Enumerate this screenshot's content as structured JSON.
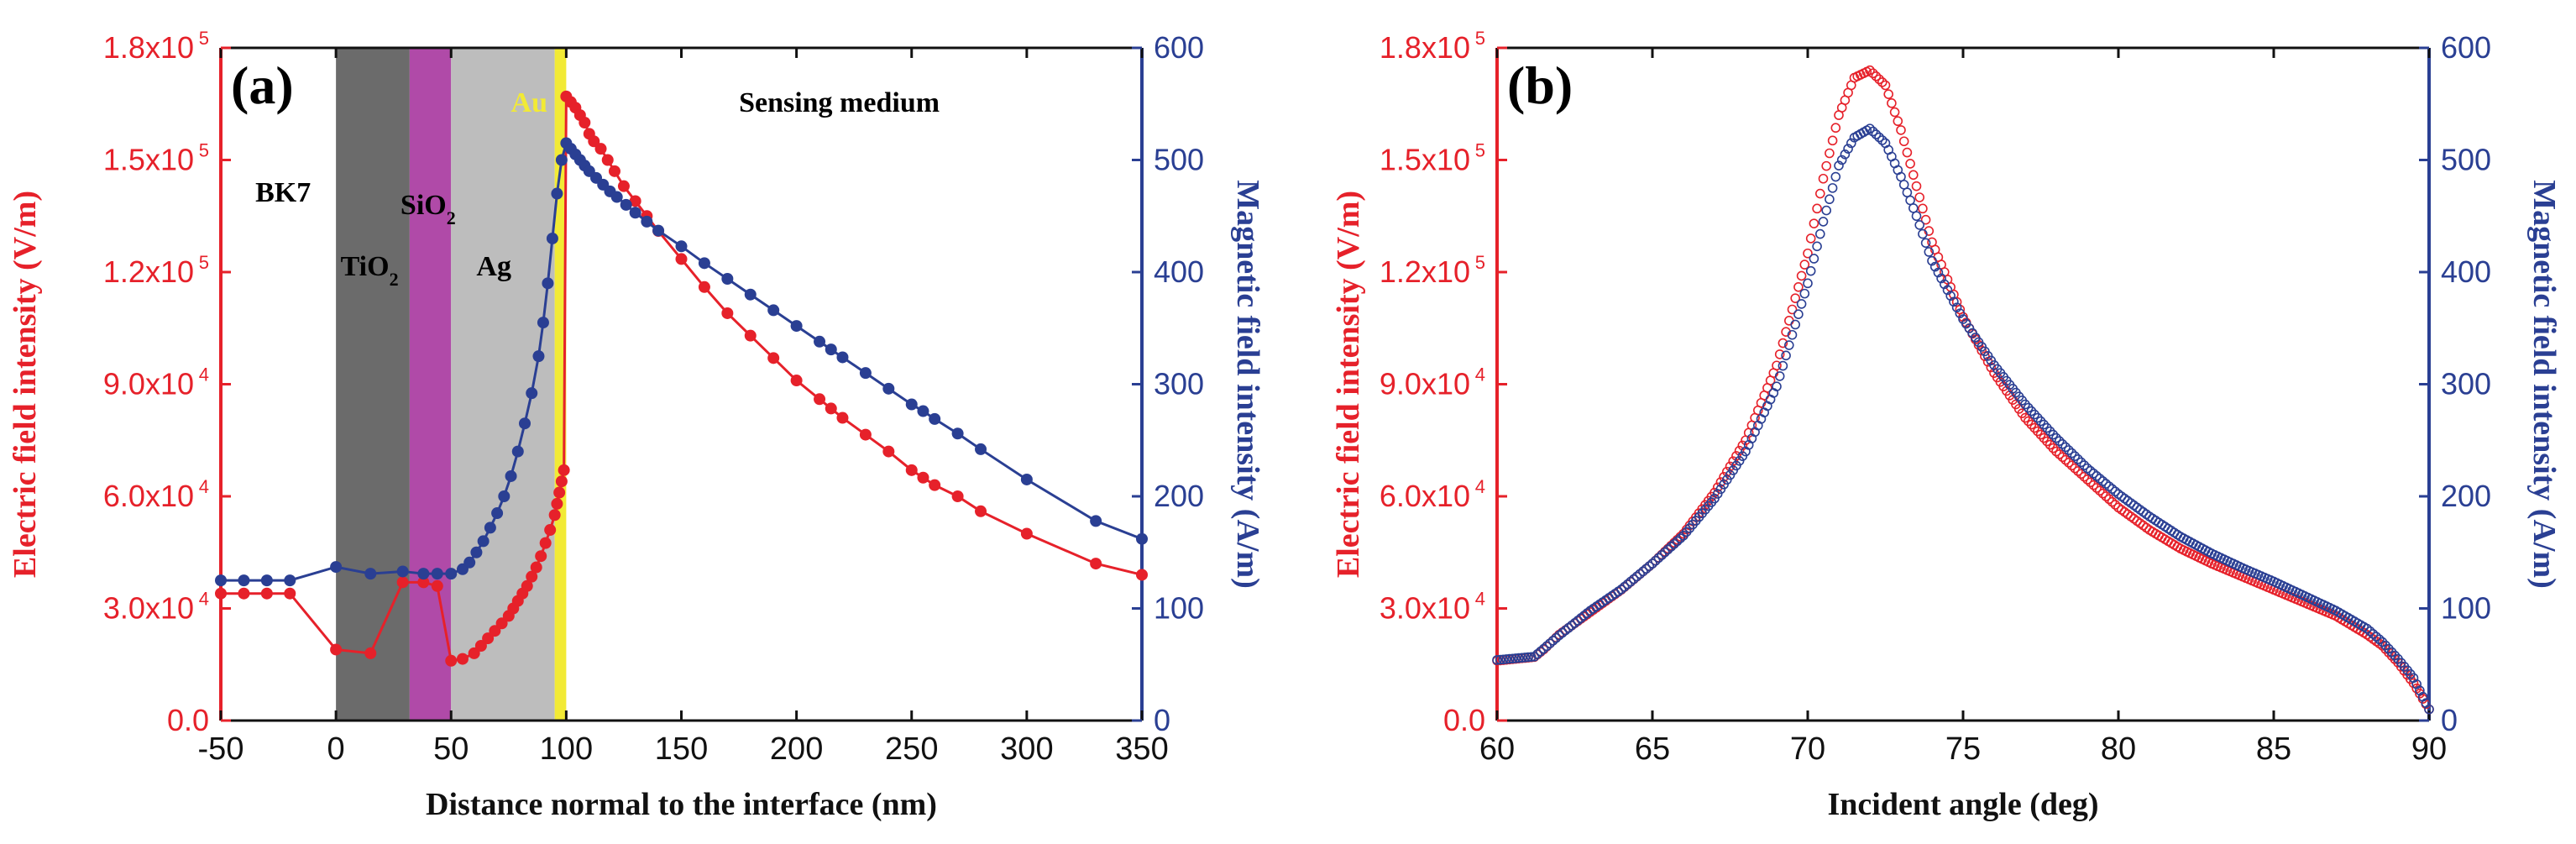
{
  "chart_data": [
    {
      "panel": "(a)",
      "type": "line",
      "xlabel": "Distance normal to the interface (nm)",
      "ylabel_left": "Electric field intensity (V/m)",
      "ylabel_right": "Magnetic field intensity (A/m)",
      "xlim": [
        -50,
        350
      ],
      "ylim_left": [
        0,
        180000
      ],
      "ylim_right": [
        0,
        600
      ],
      "x_ticks": [
        "-50",
        "0",
        "50",
        "100",
        "150",
        "200",
        "250",
        "300",
        "350"
      ],
      "y_left_ticks": [
        "0.0",
        "3.0x10",
        "6.0x10",
        "9.0x10",
        "1.2x10",
        "1.5x10",
        "1.8x10"
      ],
      "y_left_exponents": [
        "",
        "4",
        "4",
        "4",
        "5",
        "5",
        "5"
      ],
      "y_right_ticks": [
        "0",
        "100",
        "200",
        "300",
        "400",
        "500",
        "600"
      ],
      "regions": [
        {
          "name": "BK7",
          "x0": -50,
          "x1": 0,
          "color": "#ffffff"
        },
        {
          "name": "TiO",
          "sub": "2",
          "x0": 0,
          "x1": 32,
          "color": "#6b6b6b"
        },
        {
          "name": "SiO",
          "sub": "2",
          "x0": 32,
          "x1": 50,
          "color": "#b04aa8"
        },
        {
          "name": "Ag",
          "x0": 50,
          "x1": 95,
          "color": "#bdbdbd"
        },
        {
          "name": "Au",
          "x0": 95,
          "x1": 100,
          "color": "#f2ea35"
        },
        {
          "name": "Sensing medium",
          "x0": 100,
          "x1": 350,
          "color": "#ffffff"
        }
      ],
      "series": [
        {
          "name": "Electric field intensity",
          "axis": "left",
          "color": "#e6212a",
          "x": [
            -50,
            -40,
            -30,
            -20,
            0,
            15,
            29,
            38,
            44,
            50,
            55,
            60,
            63,
            66,
            69,
            72,
            75,
            77,
            79,
            81,
            83,
            85,
            87,
            89,
            91,
            93,
            95,
            96,
            97,
            98,
            99,
            100,
            102,
            104,
            106,
            108,
            110,
            112,
            115,
            118,
            121,
            125,
            130,
            135,
            140,
            150,
            160,
            170,
            180,
            190,
            200,
            210,
            215,
            220,
            230,
            240,
            250,
            255,
            260,
            270,
            280,
            300,
            330,
            350
          ],
          "y": [
            34000,
            34000,
            34000,
            34000,
            19000,
            18000,
            37000,
            37000,
            36000,
            16000,
            16500,
            18000,
            20000,
            22000,
            24000,
            26000,
            28000,
            30000,
            32000,
            34000,
            36000,
            38500,
            41000,
            44000,
            47500,
            51000,
            55000,
            58000,
            61000,
            64000,
            67000,
            167000,
            165500,
            164000,
            162000,
            160000,
            157000,
            155000,
            153000,
            150000,
            147000,
            143000,
            139000,
            135000,
            131000,
            123500,
            116000,
            109000,
            103000,
            97000,
            91000,
            86000,
            83500,
            81000,
            76500,
            72000,
            67000,
            65000,
            63000,
            60000,
            56000,
            50000,
            42000,
            39000
          ]
        },
        {
          "name": "Magnetic field intensity",
          "axis": "right",
          "color": "#2a3f93",
          "x": [
            -50,
            -40,
            -30,
            -20,
            0,
            15,
            29,
            38,
            44,
            50,
            55,
            58,
            61,
            64,
            67,
            70,
            73,
            76,
            79,
            82,
            85,
            88,
            90,
            92,
            94,
            96,
            98,
            100,
            102,
            104,
            106,
            108,
            110,
            113,
            116,
            119,
            122,
            126,
            130,
            135,
            140,
            150,
            160,
            170,
            180,
            190,
            200,
            210,
            215,
            220,
            230,
            240,
            250,
            255,
            260,
            270,
            280,
            300,
            330,
            350
          ],
          "y": [
            125,
            125,
            125,
            125,
            137,
            131,
            133,
            131,
            131,
            131,
            135,
            141,
            150,
            160,
            172,
            185,
            200,
            218,
            240,
            265,
            292,
            325,
            355,
            390,
            430,
            470,
            500,
            515,
            510,
            505,
            500,
            495,
            490,
            484,
            478,
            472,
            467,
            460,
            453,
            445,
            437,
            423,
            408,
            394,
            380,
            366,
            352,
            338,
            331,
            324,
            310,
            296,
            282,
            276,
            269,
            256,
            242,
            215,
            178,
            162
          ]
        }
      ]
    },
    {
      "panel": "(b)",
      "type": "scatter",
      "xlabel": "Incident angle (deg)",
      "ylabel_left": "Electric field intensity (V/m)",
      "ylabel_right": "Magnetic field intensity (A/m)",
      "xlim": [
        60,
        90
      ],
      "ylim_left": [
        0,
        180000
      ],
      "ylim_right": [
        0,
        600
      ],
      "x_ticks": [
        "60",
        "65",
        "70",
        "75",
        "80",
        "85",
        "90"
      ],
      "y_left_ticks": [
        "0.0",
        "3.0x10",
        "6.0x10",
        "9.0x10",
        "1.2x10",
        "1.5x10",
        "1.8x10"
      ],
      "y_left_exponents": [
        "",
        "4",
        "4",
        "4",
        "5",
        "5",
        "5"
      ],
      "y_right_ticks": [
        "0",
        "100",
        "200",
        "300",
        "400",
        "500",
        "600"
      ],
      "series": [
        {
          "name": "Electric field intensity",
          "axis": "left",
          "color": "#e6212a",
          "x": [
            60,
            61.2,
            61.5,
            62,
            63,
            64,
            65,
            66,
            67,
            68,
            69,
            70,
            70.5,
            71,
            71.5,
            72,
            72.5,
            73,
            73.5,
            74,
            75,
            76,
            77,
            78,
            79,
            80,
            81,
            82,
            83,
            84,
            85,
            86,
            87,
            88,
            88.5,
            89,
            89.5,
            90
          ],
          "y": [
            16000,
            17000,
            19000,
            23000,
            29000,
            35000,
            42000,
            50000,
            61000,
            75000,
            95000,
            125000,
            145000,
            162000,
            172000,
            174000,
            170000,
            158000,
            143000,
            128000,
            108000,
            93000,
            81000,
            72000,
            64500,
            57000,
            51000,
            46000,
            42000,
            38500,
            35000,
            31500,
            28000,
            23000,
            20000,
            15500,
            10000,
            3000
          ]
        },
        {
          "name": "Magnetic field intensity",
          "axis": "right",
          "color": "#2a3f93",
          "x": [
            60,
            61.2,
            61.5,
            62,
            63,
            64,
            65,
            66,
            67,
            68,
            69,
            70,
            70.5,
            71,
            71.5,
            72,
            72.5,
            73,
            73.5,
            74,
            75,
            76,
            77,
            78,
            79,
            80,
            81,
            82,
            83,
            84,
            85,
            86,
            87,
            88,
            88.5,
            89,
            89.5,
            90
          ],
          "y": [
            54,
            57,
            64,
            76,
            98,
            117,
            140,
            165,
            198,
            240,
            298,
            390,
            445,
            495,
            520,
            528,
            515,
            485,
            450,
            410,
            358,
            317,
            282,
            252,
            225,
            202,
            182,
            164,
            149,
            136,
            124,
            111,
            98,
            82,
            70,
            55,
            38,
            10
          ]
        }
      ]
    }
  ]
}
